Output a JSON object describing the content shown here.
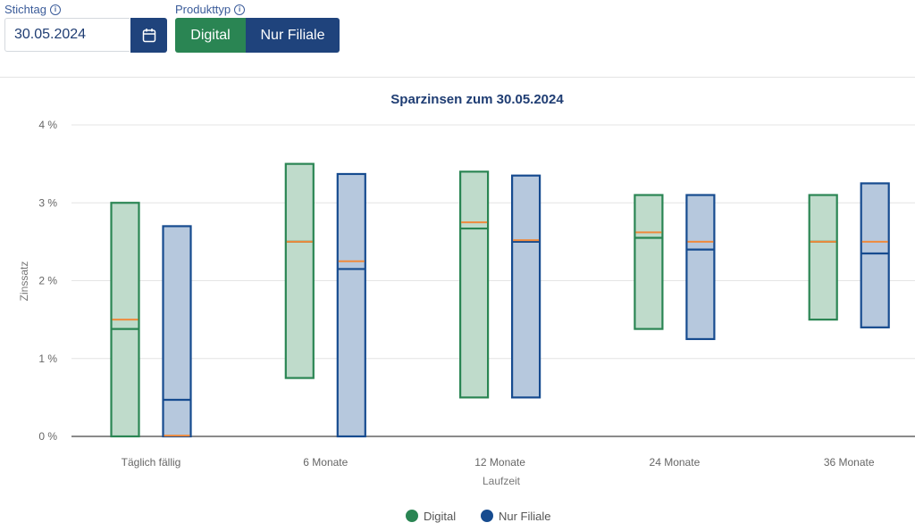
{
  "controls": {
    "stichtag_label": "Stichtag",
    "stichtag_value": "30.05.2024",
    "produkttyp_label": "Produkttyp",
    "produkttyp_options": [
      "Digital",
      "Nur Filiale"
    ],
    "produkttyp_selected": "Digital",
    "info_icon": "info-circle-icon",
    "calendar_icon": "calendar-icon"
  },
  "chart_data": {
    "type": "boxplot",
    "title": "Sparzinsen zum 30.05.2024",
    "xlabel": "Laufzeit",
    "ylabel": "Zinssatz",
    "ylim": [
      0,
      4
    ],
    "yticks": [
      "0 %",
      "1 %",
      "2 %",
      "3 %",
      "4 %"
    ],
    "ytick_values": [
      0,
      1,
      2,
      3,
      4
    ],
    "grid": true,
    "legend_position": "bottom",
    "categories": [
      "Täglich fällig",
      "6 Monate",
      "12 Monate",
      "24 Monate",
      "36 Monate"
    ],
    "mean_color": "#ef8a3c",
    "series": [
      {
        "name": "Digital",
        "color": "#2a8553",
        "fill": "#bfdbcb",
        "min": [
          0.0,
          0.75,
          0.5,
          1.38,
          1.5
        ],
        "max": [
          3.0,
          3.5,
          3.4,
          3.1,
          3.1
        ],
        "median": [
          1.38,
          2.5,
          2.67,
          2.55,
          2.5
        ],
        "mean": [
          1.5,
          2.5,
          2.75,
          2.62,
          2.5
        ]
      },
      {
        "name": "Nur Filiale",
        "color": "#164b8f",
        "fill": "#b6c8dd",
        "min": [
          0.0,
          0.0,
          0.5,
          1.25,
          1.4
        ],
        "max": [
          2.7,
          3.37,
          3.35,
          3.1,
          3.25
        ],
        "median": [
          0.47,
          2.15,
          2.5,
          2.4,
          2.35
        ],
        "mean": [
          0.01,
          2.25,
          2.52,
          2.5,
          2.5
        ]
      }
    ]
  }
}
